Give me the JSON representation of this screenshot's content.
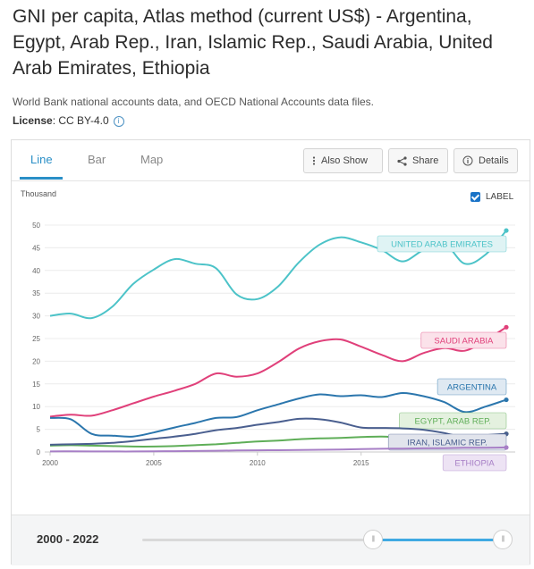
{
  "header": {
    "title": "GNI per capita, Atlas method (current US$) - Argentina, Egypt, Arab Rep., Iran, Islamic Rep., Saudi Arabia, United Arab Emirates, Ethiopia",
    "source": "World Bank national accounts data, and OECD National Accounts data files.",
    "license_label": "License",
    "license_value": ": CC BY-4.0",
    "info_icon": "i"
  },
  "tabs": [
    {
      "label": "Line",
      "active": true
    },
    {
      "label": "Bar",
      "active": false
    },
    {
      "label": "Map",
      "active": false
    }
  ],
  "buttons": {
    "also_show": "Also Show",
    "share": "Share",
    "details": "Details"
  },
  "label_toggle": {
    "label": "LABEL",
    "checked": true
  },
  "footer": {
    "range": "2000 - 2022",
    "range_start_fraction": 0.64,
    "range_end_fraction": 1.0
  },
  "colors": {
    "accent": "#2a8fc7",
    "uae": "#4cc3c8",
    "saudi": "#e0407a",
    "argentina": "#2b76ad",
    "egypt": "#5fae58",
    "iran": "#4a5f8f",
    "ethiopia": "#a77fc6"
  },
  "chart_data": {
    "type": "line",
    "title": "",
    "xlabel": "",
    "ylabel": "Thousand",
    "xlim": [
      2000,
      2022
    ],
    "ylim": [
      0,
      50
    ],
    "x_ticks": [
      2000,
      2005,
      2010,
      2015
    ],
    "y_ticks": [
      0,
      5,
      10,
      15,
      20,
      25,
      30,
      35,
      40,
      45,
      50
    ],
    "grid": true,
    "legend": "labels at line ends",
    "x": [
      2000,
      2001,
      2002,
      2003,
      2004,
      2005,
      2006,
      2007,
      2008,
      2009,
      2010,
      2011,
      2012,
      2013,
      2014,
      2015,
      2016,
      2017,
      2018,
      2019,
      2020,
      2021,
      2022
    ],
    "series": [
      {
        "name": "UNITED ARAB EMIRATES",
        "color": "#4cc3c8",
        "label_bg": "#dff3f4",
        "values": [
          30.0,
          30.5,
          29.5,
          32.0,
          37.0,
          40.2,
          42.5,
          41.5,
          40.5,
          34.7,
          33.7,
          36.5,
          41.8,
          45.7,
          47.3,
          46.2,
          44.5,
          42.0,
          44.5,
          46.0,
          41.5,
          43.5,
          48.8
        ]
      },
      {
        "name": "SAUDI ARABIA",
        "color": "#e0407a",
        "label_bg": "#fbe2ea",
        "values": [
          7.8,
          8.2,
          8.0,
          9.2,
          10.7,
          12.2,
          13.5,
          15.0,
          17.3,
          16.6,
          17.3,
          19.8,
          22.8,
          24.4,
          24.8,
          23.2,
          21.4,
          20.0,
          21.8,
          22.9,
          22.3,
          24.6,
          27.5
        ]
      },
      {
        "name": "ARGENTINA",
        "color": "#2b76ad",
        "label_bg": "#dfe9f2",
        "values": [
          7.5,
          7.2,
          4.0,
          3.6,
          3.4,
          4.3,
          5.4,
          6.4,
          7.5,
          7.7,
          9.2,
          10.5,
          11.8,
          12.7,
          12.3,
          12.5,
          12.1,
          13.0,
          12.3,
          11.0,
          8.8,
          10.0,
          11.5
        ]
      },
      {
        "name": "EGYPT, ARAB REP.",
        "color": "#5fae58",
        "label_bg": "#e4f1df",
        "values": [
          1.4,
          1.5,
          1.4,
          1.3,
          1.2,
          1.2,
          1.3,
          1.5,
          1.7,
          2.0,
          2.3,
          2.5,
          2.8,
          3.0,
          3.1,
          3.3,
          3.4,
          3.2,
          3.1,
          3.1,
          3.3,
          3.6,
          4.0
        ]
      },
      {
        "name": "IRAN, ISLAMIC REP.",
        "color": "#4a5f8f",
        "label_bg": "#e1e4ec",
        "values": [
          1.6,
          1.7,
          1.8,
          2.0,
          2.4,
          2.9,
          3.4,
          4.0,
          4.8,
          5.3,
          6.0,
          6.6,
          7.3,
          7.2,
          6.5,
          5.4,
          5.3,
          5.2,
          4.9,
          4.2,
          3.2,
          3.7,
          4.0
        ]
      },
      {
        "name": "ETHIOPIA",
        "color": "#a77fc6",
        "label_bg": "#ede3f4",
        "values": [
          0.13,
          0.13,
          0.12,
          0.11,
          0.11,
          0.15,
          0.18,
          0.22,
          0.28,
          0.34,
          0.38,
          0.39,
          0.44,
          0.5,
          0.56,
          0.63,
          0.71,
          0.75,
          0.8,
          0.84,
          0.93,
          0.94,
          1.0
        ]
      }
    ]
  }
}
